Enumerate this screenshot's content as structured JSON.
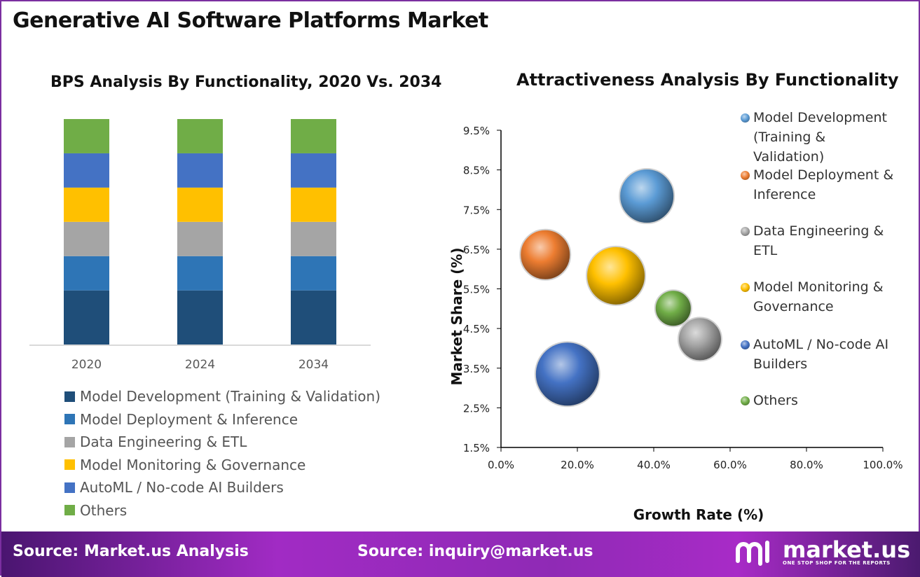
{
  "title": "Generative AI Software Platforms Market",
  "chart_data": [
    {
      "type": "bar",
      "stacked": true,
      "title": "BPS Analysis By Functionality, 2020 Vs. 2034",
      "categories": [
        "2020",
        "2024",
        "2034"
      ],
      "series": [
        {
          "name": "Model Development (Training & Validation)",
          "color": "#1f4e79",
          "values": [
            24,
            24,
            24
          ]
        },
        {
          "name": "Model Deployment & Inference",
          "color": "#2e75b6",
          "values": [
            15.2,
            15.2,
            15.2
          ]
        },
        {
          "name": "Data Engineering & ETL",
          "color": "#a5a5a5",
          "values": [
            15.2,
            15.2,
            15.2
          ]
        },
        {
          "name": "Model Monitoring & Governance",
          "color": "#ffc000",
          "values": [
            15.2,
            15.2,
            15.2
          ]
        },
        {
          "name": "AutoML / No-code AI Builders",
          "color": "#4472c4",
          "values": [
            15.2,
            15.2,
            15.2
          ]
        },
        {
          "name": "Others",
          "color": "#70ad47",
          "values": [
            15.2,
            15.2,
            15.2
          ]
        }
      ],
      "legend": "bottom"
    },
    {
      "type": "scatter",
      "subtype": "bubble",
      "title": "Attractiveness Analysis By Functionality",
      "xlabel": "Growth Rate (%)",
      "ylabel": "Market Share (%)",
      "xlim": [
        0,
        100
      ],
      "ylim": [
        1.5,
        9.5
      ],
      "xticks": [
        "0.0%",
        "20.0%",
        "40.0%",
        "60.0%",
        "80.0%",
        "100.0%"
      ],
      "yticks": [
        "1.5%",
        "2.5%",
        "3.5%",
        "4.5%",
        "5.5%",
        "6.5%",
        "7.5%",
        "8.5%",
        "9.5%"
      ],
      "legend": "right",
      "series": [
        {
          "name": "Model Development (Training & Validation)",
          "legend_lines": [
            "Model Development",
            "(Training &",
            "Validation)"
          ],
          "color": "#5b9bd5",
          "x": 38.2,
          "y": 7.84,
          "size": 39
        },
        {
          "name": "Model Deployment & Inference",
          "legend_lines": [
            "Model Deployment &",
            "Inference"
          ],
          "color": "#ed7d31",
          "x": 11.6,
          "y": 6.36,
          "size": 36
        },
        {
          "name": "Data Engineering & ETL",
          "legend_lines": [
            "Data Engineering &",
            "ETL"
          ],
          "color": "#a5a5a5",
          "x": 52.1,
          "y": 4.23,
          "size": 31
        },
        {
          "name": "Model Monitoring & Governance",
          "legend_lines": [
            "Model Monitoring &",
            "Governance"
          ],
          "color": "#ffc000",
          "x": 30.1,
          "y": 5.83,
          "size": 42
        },
        {
          "name": "AutoML / No-code AI Builders",
          "legend_lines": [
            "AutoML / No-code AI",
            "Builders"
          ],
          "color": "#4472c4",
          "x": 17.4,
          "y": 3.35,
          "size": 46
        },
        {
          "name": "Others",
          "legend_lines": [
            "Others"
          ],
          "color": "#70ad47",
          "x": 45.1,
          "y": 5.01,
          "size": 26
        }
      ]
    }
  ],
  "footer": {
    "source1": "Source: Market.us Analysis",
    "source2": "Source: inquiry@market.us",
    "logo": "market.us",
    "tagline": "ONE STOP SHOP FOR THE REPORTS"
  }
}
